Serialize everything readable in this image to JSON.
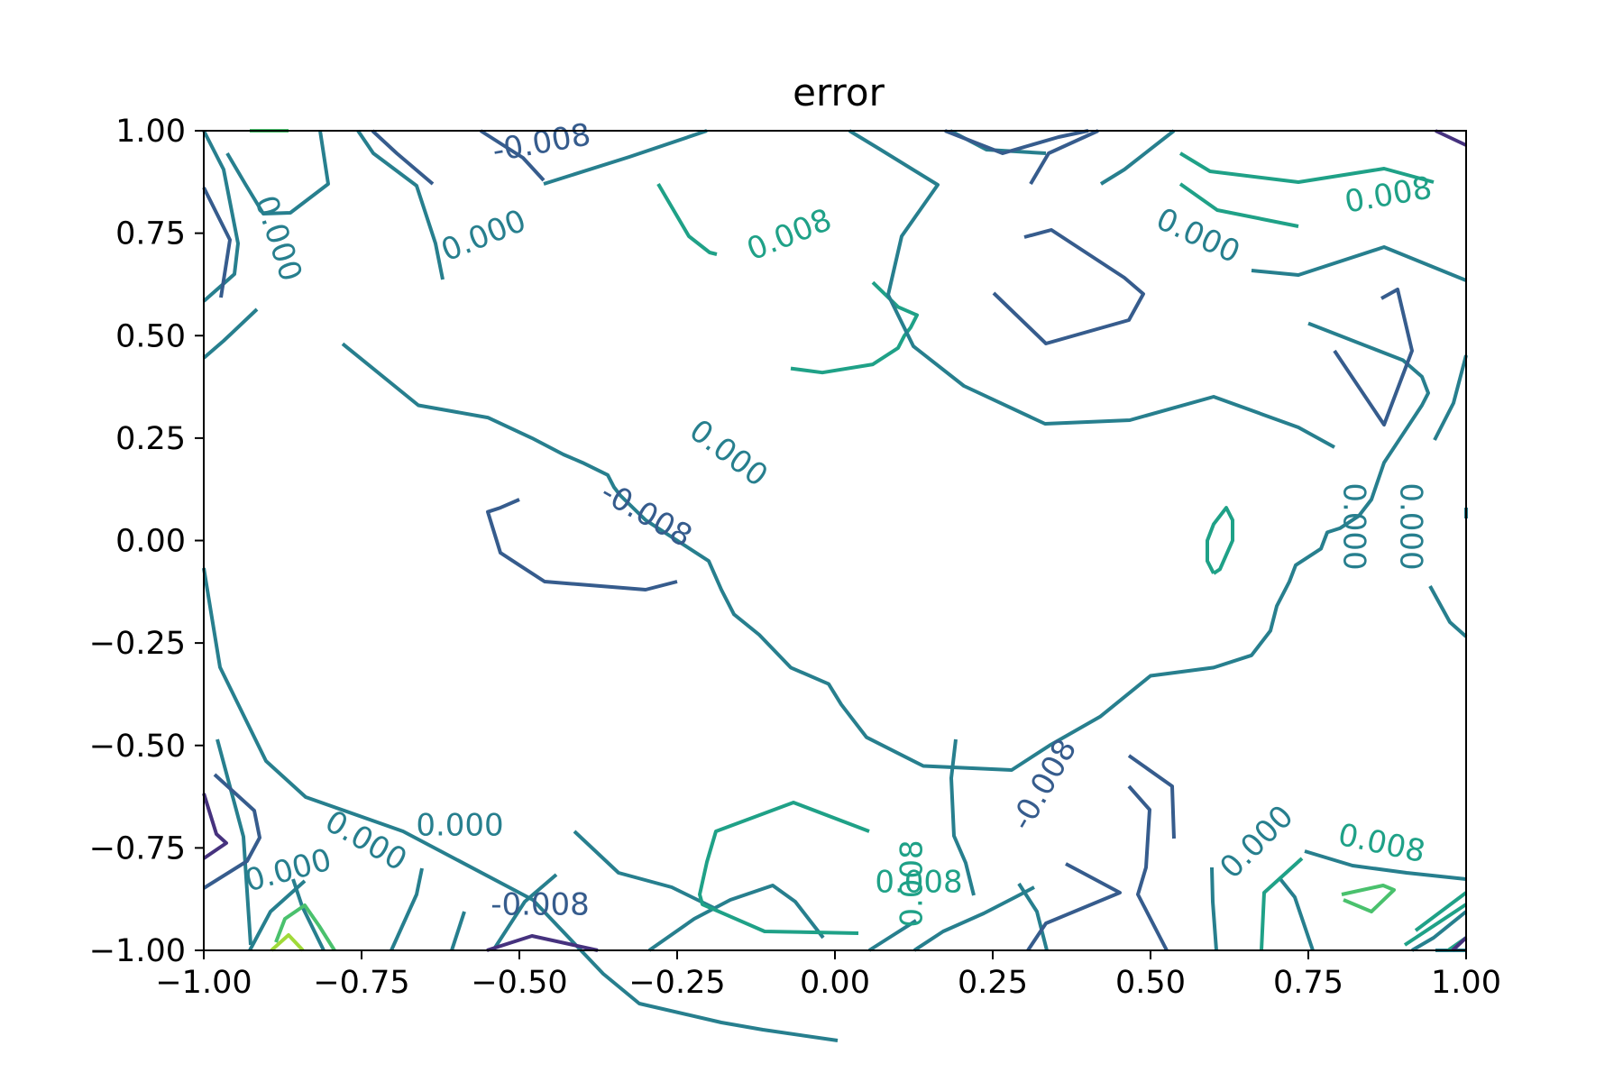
{
  "chart_data": {
    "type": "contour",
    "title": "error",
    "xlabel": "",
    "ylabel": "",
    "xlim": [
      -1.0,
      1.0
    ],
    "ylim": [
      -1.0,
      1.0
    ],
    "x_ticks": [
      "−1.00",
      "−0.75",
      "−0.50",
      "−0.25",
      "0.00",
      "0.25",
      "0.50",
      "0.75",
      "1.00"
    ],
    "y_ticks": [
      "1.00",
      "0.75",
      "0.50",
      "0.25",
      "0.00",
      "−0.25",
      "−0.50",
      "−0.75",
      "−1.00"
    ],
    "x_tick_values": [
      -1.0,
      -0.75,
      -0.5,
      -0.25,
      0.0,
      0.25,
      0.5,
      0.75,
      1.0
    ],
    "y_tick_values": [
      1.0,
      0.75,
      0.5,
      0.25,
      0.0,
      -0.25,
      -0.5,
      -0.75,
      -1.0
    ],
    "grid": false,
    "colormap": "viridis",
    "levels": [
      {
        "value": -0.024,
        "color": "#46327e"
      },
      {
        "value": -0.016,
        "color": "#3e4989"
      },
      {
        "value": -0.008,
        "color": "#365c8d"
      },
      {
        "value": 0.0,
        "color": "#277f8e"
      },
      {
        "value": 0.008,
        "color": "#1fa187"
      },
      {
        "value": 0.016,
        "color": "#4ac16d"
      },
      {
        "value": 0.024,
        "color": "#a0da39"
      }
    ],
    "contours": [
      {
        "level": 0.0,
        "points": [
          [
            -0.78,
            0.48
          ],
          [
            -0.66,
            0.33
          ],
          [
            -0.55,
            0.3
          ],
          [
            -0.48,
            0.25
          ],
          [
            -0.43,
            0.21
          ],
          [
            -0.4,
            0.19
          ],
          [
            -0.36,
            0.16
          ],
          [
            -0.35,
            0.13
          ],
          [
            -0.34,
            0.11
          ],
          [
            -0.3,
            0.05
          ],
          [
            -0.27,
            0.02
          ],
          [
            -0.2,
            -0.05
          ],
          [
            -0.18,
            -0.12
          ],
          [
            -0.16,
            -0.18
          ],
          [
            -0.12,
            -0.23
          ],
          [
            -0.07,
            -0.31
          ],
          [
            -0.01,
            -0.35
          ],
          [
            0.01,
            -0.4
          ],
          [
            0.05,
            -0.48
          ],
          [
            0.14,
            -0.55
          ],
          [
            0.28,
            -0.56
          ],
          [
            0.34,
            -0.5
          ],
          [
            0.42,
            -0.43
          ],
          [
            0.5,
            -0.33
          ],
          [
            0.6,
            -0.31
          ],
          [
            0.66,
            -0.28
          ],
          [
            0.69,
            -0.22
          ],
          [
            0.7,
            -0.16
          ],
          [
            0.72,
            -0.1
          ],
          [
            0.73,
            -0.06
          ],
          [
            0.75,
            -0.04
          ],
          [
            0.77,
            -0.02
          ],
          [
            0.78,
            0.02
          ],
          [
            0.8,
            0.03
          ],
          [
            0.83,
            0.06
          ],
          [
            0.85,
            0.1
          ],
          [
            0.87,
            0.19
          ],
          [
            0.9,
            0.26
          ],
          [
            0.93,
            0.33
          ],
          [
            0.94,
            0.36
          ],
          [
            0.93,
            0.4
          ],
          [
            0.9,
            0.44
          ],
          [
            0.85,
            0.47
          ],
          [
            0.8,
            0.5
          ],
          [
            0.75,
            0.53
          ]
        ]
      },
      {
        "level": -0.008,
        "points": [
          [
            -0.5,
            0.1
          ],
          [
            -0.53,
            0.08
          ],
          [
            -0.55,
            0.07
          ],
          [
            -0.54,
            0.02
          ],
          [
            -0.53,
            -0.03
          ],
          [
            -0.5,
            -0.06
          ],
          [
            -0.46,
            -0.1
          ],
          [
            -0.38,
            -0.11
          ],
          [
            -0.3,
            -0.12
          ],
          [
            -0.25,
            -0.1
          ]
        ]
      },
      {
        "level": 0.008,
        "points": [
          [
            0.06,
            0.63
          ],
          [
            0.08,
            0.6
          ],
          [
            0.1,
            0.57
          ],
          [
            0.13,
            0.55
          ],
          [
            0.12,
            0.52
          ],
          [
            0.11,
            0.5
          ],
          [
            0.1,
            0.47
          ],
          [
            0.06,
            0.43
          ],
          [
            -0.02,
            0.41
          ],
          [
            -0.07,
            0.42
          ]
        ]
      },
      {
        "level": 0.008,
        "points": [
          [
            0.6,
            -0.08
          ],
          [
            0.59,
            -0.05
          ],
          [
            0.59,
            0.0
          ],
          [
            0.6,
            0.04
          ],
          [
            0.62,
            0.08
          ],
          [
            0.63,
            0.05
          ],
          [
            0.63,
            0.0
          ],
          [
            0.61,
            -0.07
          ],
          [
            0.6,
            -0.08
          ]
        ]
      }
    ],
    "contour_labels": [
      {
        "text": "-0.008",
        "level": -0.008
      },
      {
        "text": "0.000",
        "level": 0.0
      },
      {
        "text": "0.008",
        "level": 0.008
      },
      {
        "text": "0.000",
        "level": 0.0
      },
      {
        "text": "0.000",
        "level": 0.0
      },
      {
        "text": "-0.008",
        "level": -0.008
      },
      {
        "text": "0.000",
        "level": 0.0
      },
      {
        "text": "0.008",
        "level": 0.008
      },
      {
        "text": "0.000",
        "level": 0.0
      },
      {
        "text": "0.000",
        "level": 0.0
      },
      {
        "text": "0.000",
        "level": 0.0
      },
      {
        "text": "0.000",
        "level": 0.0
      },
      {
        "text": "0.000",
        "level": 0.0
      },
      {
        "text": "0.008",
        "level": 0.008
      },
      {
        "text": "-0.008",
        "level": -0.008
      },
      {
        "text": "0.008",
        "level": 0.008
      },
      {
        "text": "-0.008",
        "level": -0.008
      },
      {
        "text": "0.000",
        "level": 0.0
      },
      {
        "text": "0.008",
        "level": 0.008
      }
    ]
  }
}
